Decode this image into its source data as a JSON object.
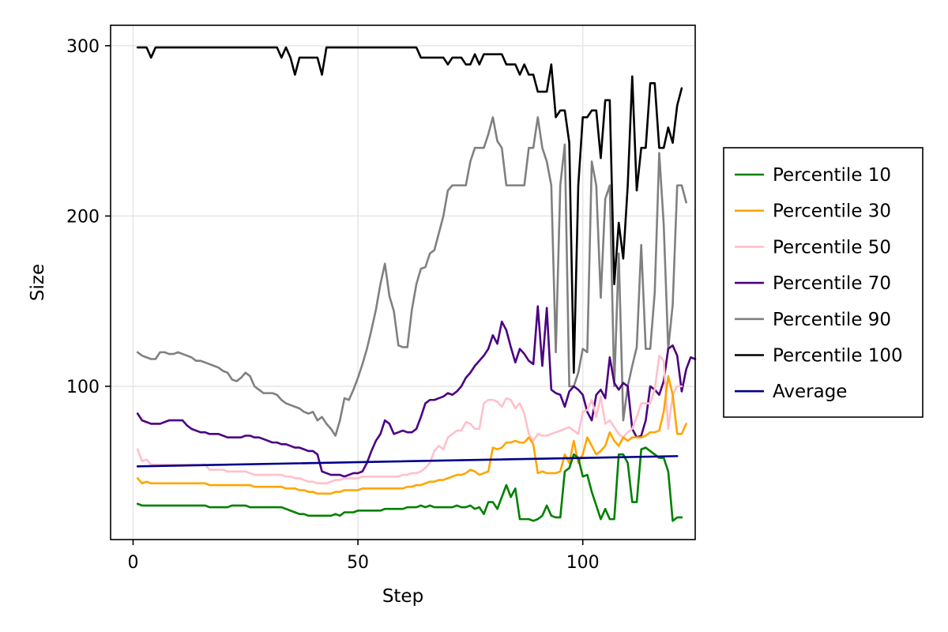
{
  "chart_data": {
    "type": "line",
    "title": "",
    "xlabel": "Step",
    "ylabel": "Size",
    "xlim": [
      -5,
      125
    ],
    "ylim": [
      10,
      312
    ],
    "xticks": [
      0,
      50,
      100
    ],
    "yticks": [
      100,
      200,
      300
    ],
    "grid": true,
    "legend_position": "right",
    "series": [
      {
        "name": "Percentile 10",
        "color": "#008000",
        "x_start": 1,
        "values": [
          31,
          30,
          30,
          30,
          30,
          30,
          30,
          30,
          30,
          30,
          30,
          30,
          30,
          30,
          30,
          30,
          29,
          29,
          29,
          29,
          29,
          30,
          30,
          30,
          30,
          29,
          29,
          29,
          29,
          29,
          29,
          29,
          29,
          28,
          27,
          26,
          25,
          25,
          24,
          24,
          24,
          24,
          24,
          24,
          25,
          24,
          26,
          26,
          26,
          27,
          27,
          27,
          27,
          27,
          27,
          28,
          28,
          28,
          28,
          28,
          29,
          29,
          29,
          30,
          29,
          30,
          29,
          29,
          29,
          29,
          29,
          30,
          29,
          29,
          30,
          28,
          29,
          25,
          32,
          32,
          28,
          35,
          42,
          35,
          40,
          22,
          22,
          22,
          21,
          22,
          24,
          30,
          24,
          23,
          23,
          50,
          52,
          60,
          58,
          47,
          48,
          38,
          30,
          22,
          28,
          22,
          22,
          60,
          60,
          55,
          32,
          32,
          63,
          64,
          62,
          60,
          58,
          58,
          50,
          21,
          23,
          23
        ]
      },
      {
        "name": "Percentile 30",
        "color": "#ffa500",
        "x_start": 1,
        "values": [
          46,
          43,
          44,
          43,
          43,
          43,
          43,
          43,
          43,
          43,
          43,
          43,
          43,
          43,
          43,
          43,
          42,
          42,
          42,
          42,
          42,
          42,
          42,
          42,
          42,
          42,
          41,
          41,
          41,
          41,
          41,
          41,
          41,
          40,
          40,
          40,
          39,
          39,
          38,
          38,
          37,
          37,
          37,
          37,
          38,
          38,
          39,
          39,
          39,
          39,
          40,
          40,
          40,
          40,
          40,
          40,
          40,
          40,
          40,
          40,
          41,
          41,
          42,
          42,
          43,
          44,
          44,
          45,
          45,
          46,
          47,
          48,
          48,
          49,
          51,
          50,
          48,
          49,
          50,
          64,
          63,
          64,
          67,
          67,
          68,
          67,
          67,
          70,
          66,
          49,
          50,
          49,
          49,
          49,
          50,
          60,
          55,
          68,
          55,
          60,
          70,
          65,
          60,
          62,
          65,
          73,
          68,
          65,
          70,
          68,
          70,
          70,
          70,
          71,
          73,
          73,
          74,
          85,
          106,
          95,
          72,
          72,
          78
        ]
      },
      {
        "name": "Percentile 50",
        "color": "#ffc0cb",
        "x_start": 1,
        "values": [
          63,
          56,
          57,
          54,
          54,
          54,
          54,
          54,
          54,
          54,
          54,
          54,
          54,
          54,
          54,
          54,
          51,
          51,
          51,
          51,
          50,
          50,
          50,
          50,
          50,
          49,
          48,
          48,
          48,
          48,
          48,
          48,
          48,
          47,
          47,
          46,
          46,
          45,
          44,
          44,
          43,
          43,
          43,
          44,
          45,
          45,
          46,
          46,
          46,
          46,
          47,
          47,
          47,
          47,
          47,
          47,
          47,
          47,
          47,
          48,
          48,
          49,
          49,
          50,
          52,
          55,
          62,
          65,
          63,
          70,
          72,
          74,
          74,
          79,
          78,
          75,
          75,
          90,
          92,
          92,
          91,
          88,
          93,
          92,
          87,
          90,
          84,
          72,
          68,
          72,
          71,
          71,
          72,
          73,
          74,
          75,
          76,
          74,
          72,
          85,
          86,
          92,
          82,
          94,
          78,
          80,
          76,
          72,
          70,
          73,
          75,
          82,
          90,
          90,
          90,
          98,
          118,
          115,
          75,
          95,
          100,
          100
        ]
      },
      {
        "name": "Percentile 70",
        "color": "#4b0082",
        "x_start": 1,
        "values": [
          84,
          80,
          79,
          78,
          78,
          78,
          79,
          80,
          80,
          80,
          80,
          77,
          75,
          74,
          73,
          73,
          72,
          72,
          72,
          71,
          70,
          70,
          70,
          70,
          71,
          71,
          70,
          70,
          69,
          68,
          67,
          67,
          66,
          66,
          65,
          64,
          64,
          63,
          62,
          62,
          60,
          50,
          49,
          48,
          48,
          48,
          47,
          48,
          49,
          49,
          50,
          55,
          62,
          68,
          72,
          80,
          78,
          72,
          73,
          74,
          73,
          73,
          75,
          82,
          90,
          92,
          92,
          93,
          94,
          96,
          95,
          97,
          100,
          105,
          108,
          112,
          115,
          118,
          122,
          130,
          125,
          138,
          133,
          123,
          114,
          122,
          119,
          115,
          113,
          147,
          112,
          146,
          98,
          96,
          95,
          88,
          97,
          100,
          98,
          95,
          85,
          80,
          95,
          98,
          93,
          117,
          102,
          98,
          102,
          100,
          75,
          70,
          71,
          80,
          100,
          98,
          95,
          103,
          122,
          124,
          118,
          97,
          110,
          117,
          116
        ]
      },
      {
        "name": "Percentile 90",
        "color": "#808080",
        "x_start": 1,
        "values": [
          120,
          118,
          117,
          116,
          116,
          120,
          120,
          119,
          119,
          120,
          119,
          118,
          117,
          115,
          115,
          114,
          113,
          112,
          111,
          109,
          108,
          104,
          103,
          105,
          108,
          106,
          100,
          98,
          96,
          96,
          96,
          95,
          92,
          90,
          89,
          88,
          87,
          85,
          84,
          85,
          80,
          82,
          78,
          75,
          71,
          80,
          93,
          92,
          98,
          105,
          113,
          122,
          133,
          145,
          160,
          172,
          153,
          144,
          124,
          123,
          123,
          145,
          160,
          169,
          170,
          178,
          180,
          190,
          200,
          215,
          218,
          218,
          218,
          218,
          232,
          240,
          240,
          240,
          248,
          258,
          244,
          240,
          218,
          218,
          218,
          218,
          218,
          240,
          240,
          258,
          240,
          232,
          218,
          120,
          218,
          242,
          100,
          100,
          108,
          122,
          120,
          232,
          218,
          152,
          210,
          218,
          100,
          178,
          80,
          100,
          112,
          123,
          183,
          122,
          122,
          155,
          237,
          195,
          122,
          148,
          218,
          218,
          208
        ]
      },
      {
        "name": "Percentile 100",
        "color": "#000000",
        "x_start": 1,
        "values": [
          299,
          299,
          299,
          293,
          299,
          299,
          299,
          299,
          299,
          299,
          299,
          299,
          299,
          299,
          299,
          299,
          299,
          299,
          299,
          299,
          299,
          299,
          299,
          299,
          299,
          299,
          299,
          299,
          299,
          299,
          299,
          299,
          293,
          299,
          293,
          283,
          293,
          293,
          293,
          293,
          293,
          283,
          299,
          299,
          299,
          299,
          299,
          299,
          299,
          299,
          299,
          299,
          299,
          299,
          299,
          299,
          299,
          299,
          299,
          299,
          299,
          299,
          299,
          293,
          293,
          293,
          293,
          293,
          293,
          289,
          293,
          293,
          293,
          289,
          289,
          295,
          289,
          295,
          295,
          295,
          295,
          295,
          289,
          289,
          289,
          283,
          289,
          283,
          283,
          273,
          273,
          273,
          289,
          258,
          262,
          262,
          243,
          108,
          218,
          258,
          258,
          262,
          262,
          234,
          268,
          268,
          160,
          196,
          175,
          218,
          282,
          215,
          240,
          240,
          278,
          278,
          240,
          240,
          252,
          243,
          265,
          275
        ]
      },
      {
        "name": "Average",
        "color": "#00008b",
        "x": [
          1,
          121
        ],
        "values": [
          53,
          59
        ]
      }
    ]
  }
}
